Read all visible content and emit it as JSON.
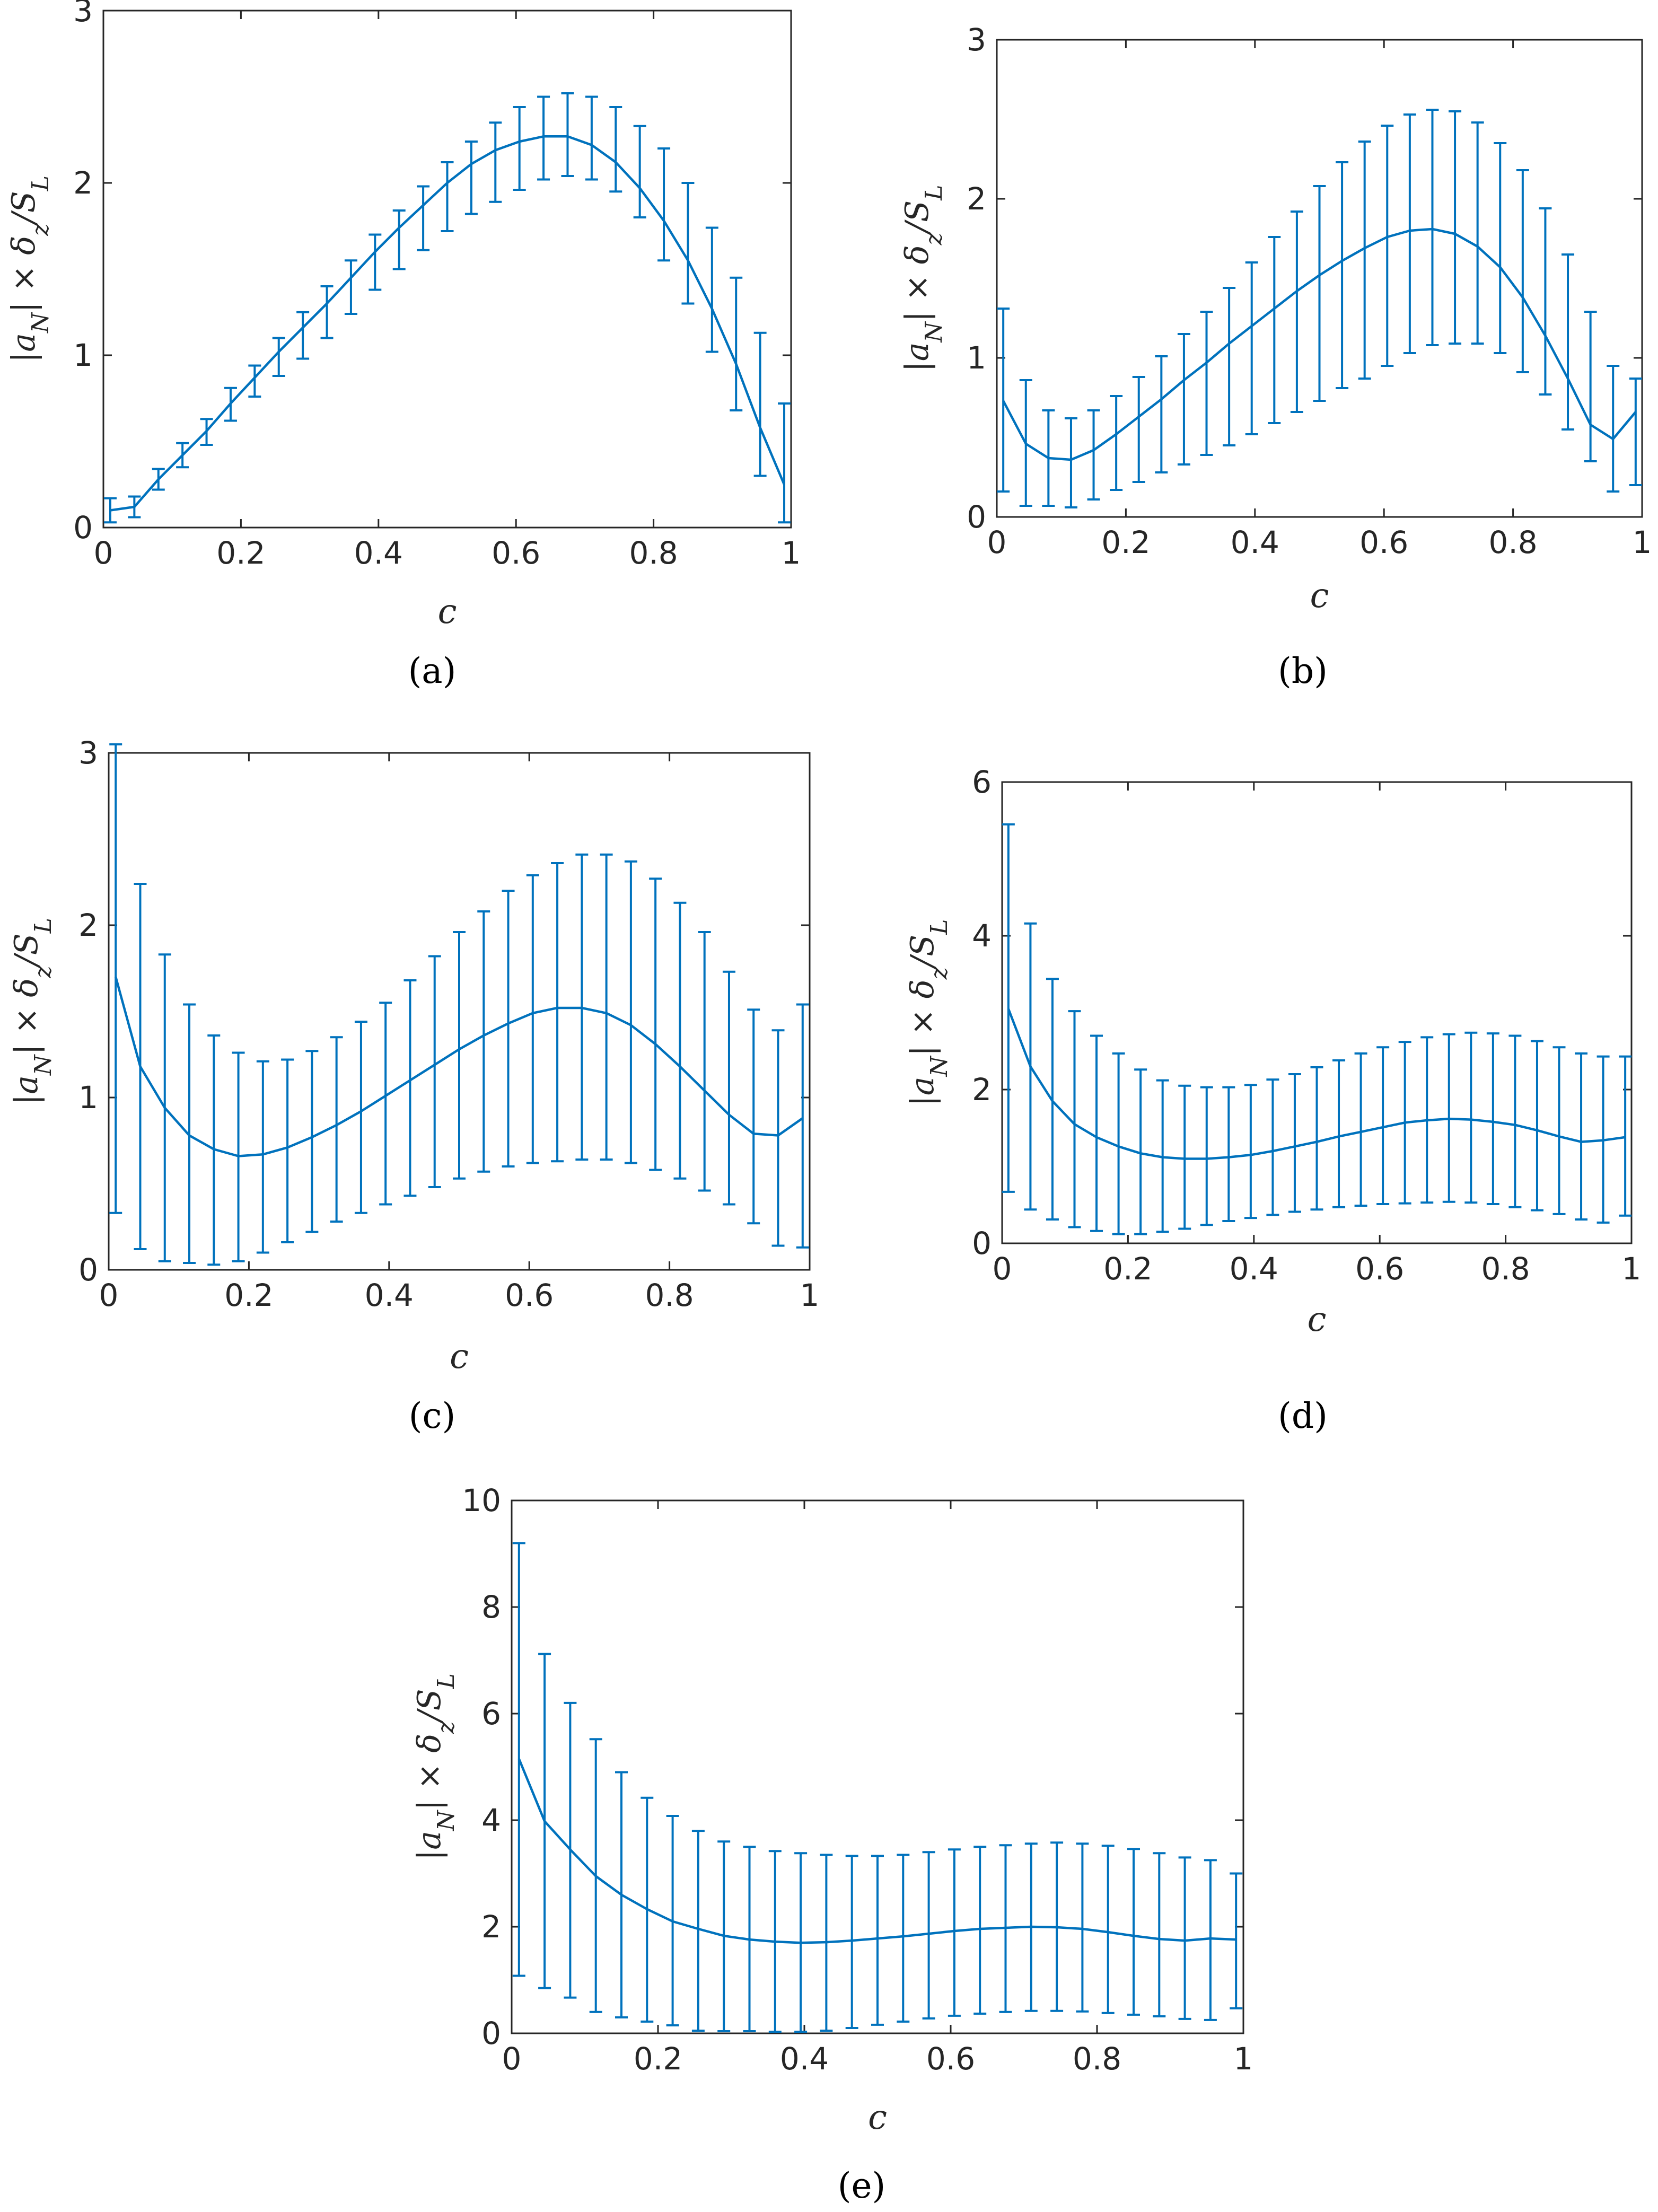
{
  "figure": {
    "caption_labels": [
      "(a)",
      "(b)",
      "(c)",
      "(d)",
      "(e)"
    ]
  },
  "colors": {
    "series": "#0072BD",
    "axis": "#262626"
  },
  "chart_data": [
    {
      "type": "line",
      "panel": "(a)",
      "xlabel": "c",
      "ylabel": "|a_N| × δ_z/S_L",
      "xlim": [
        0,
        1
      ],
      "ylim": [
        0,
        3
      ],
      "xticks": [
        "0",
        "0.2",
        "0.4",
        "0.6",
        "0.8",
        "1"
      ],
      "yticks": [
        "0",
        "1",
        "2",
        "3"
      ],
      "x": [
        0.01,
        0.045,
        0.08,
        0.115,
        0.15,
        0.185,
        0.22,
        0.255,
        0.29,
        0.325,
        0.36,
        0.395,
        0.43,
        0.465,
        0.5,
        0.535,
        0.57,
        0.605,
        0.64,
        0.675,
        0.71,
        0.745,
        0.78,
        0.815,
        0.85,
        0.885,
        0.92,
        0.955,
        0.99
      ],
      "mean": [
        0.1,
        0.12,
        0.28,
        0.42,
        0.56,
        0.72,
        0.87,
        1.02,
        1.16,
        1.3,
        1.45,
        1.6,
        1.74,
        1.87,
        2.0,
        2.11,
        2.19,
        2.24,
        2.27,
        2.27,
        2.22,
        2.12,
        1.97,
        1.78,
        1.55,
        1.27,
        0.95,
        0.58,
        0.25
      ],
      "err_low": [
        0.03,
        0.06,
        0.22,
        0.35,
        0.48,
        0.62,
        0.76,
        0.88,
        0.98,
        1.1,
        1.24,
        1.38,
        1.5,
        1.61,
        1.72,
        1.82,
        1.89,
        1.96,
        2.02,
        2.04,
        2.02,
        1.95,
        1.8,
        1.55,
        1.3,
        1.02,
        0.68,
        0.3,
        0.03
      ],
      "err_high": [
        0.17,
        0.18,
        0.34,
        0.49,
        0.63,
        0.81,
        0.94,
        1.1,
        1.25,
        1.4,
        1.55,
        1.7,
        1.84,
        1.98,
        2.12,
        2.24,
        2.35,
        2.44,
        2.5,
        2.52,
        2.5,
        2.44,
        2.33,
        2.2,
        2.0,
        1.74,
        1.45,
        1.13,
        0.72
      ]
    },
    {
      "type": "line",
      "panel": "(b)",
      "xlabel": "c",
      "ylabel": "|a_N| × δ_z/S_L",
      "xlim": [
        0,
        1
      ],
      "ylim": [
        0,
        3
      ],
      "xticks": [
        "0",
        "0.2",
        "0.4",
        "0.6",
        "0.8",
        "1"
      ],
      "yticks": [
        "0",
        "1",
        "2",
        "3"
      ],
      "x": [
        0.01,
        0.045,
        0.08,
        0.115,
        0.15,
        0.185,
        0.22,
        0.255,
        0.29,
        0.325,
        0.36,
        0.395,
        0.43,
        0.465,
        0.5,
        0.535,
        0.57,
        0.605,
        0.64,
        0.675,
        0.71,
        0.745,
        0.78,
        0.815,
        0.85,
        0.885,
        0.92,
        0.955,
        0.99
      ],
      "mean": [
        0.73,
        0.46,
        0.37,
        0.36,
        0.42,
        0.52,
        0.63,
        0.74,
        0.86,
        0.97,
        1.09,
        1.2,
        1.31,
        1.42,
        1.52,
        1.61,
        1.69,
        1.76,
        1.8,
        1.81,
        1.78,
        1.7,
        1.57,
        1.38,
        1.14,
        0.87,
        0.58,
        0.49,
        0.66
      ],
      "err_low": [
        0.16,
        0.07,
        0.07,
        0.06,
        0.11,
        0.17,
        0.22,
        0.28,
        0.33,
        0.39,
        0.45,
        0.52,
        0.59,
        0.66,
        0.73,
        0.81,
        0.87,
        0.95,
        1.03,
        1.08,
        1.09,
        1.09,
        1.03,
        0.91,
        0.77,
        0.55,
        0.35,
        0.16,
        0.2
      ],
      "err_high": [
        1.31,
        0.86,
        0.67,
        0.62,
        0.67,
        0.76,
        0.88,
        1.01,
        1.15,
        1.29,
        1.44,
        1.6,
        1.76,
        1.92,
        2.08,
        2.23,
        2.36,
        2.46,
        2.53,
        2.56,
        2.55,
        2.48,
        2.35,
        2.18,
        1.94,
        1.65,
        1.29,
        0.95,
        0.87
      ]
    },
    {
      "type": "line",
      "panel": "(c)",
      "xlabel": "c",
      "ylabel": "|a_N| × δ_z/S_L",
      "xlim": [
        0,
        1
      ],
      "ylim": [
        0,
        3
      ],
      "xticks": [
        "0",
        "0.2",
        "0.4",
        "0.6",
        "0.8",
        "1"
      ],
      "yticks": [
        "0",
        "1",
        "2",
        "3"
      ],
      "x": [
        0.01,
        0.045,
        0.08,
        0.115,
        0.15,
        0.185,
        0.22,
        0.255,
        0.29,
        0.325,
        0.36,
        0.395,
        0.43,
        0.465,
        0.5,
        0.535,
        0.57,
        0.605,
        0.64,
        0.675,
        0.71,
        0.745,
        0.78,
        0.815,
        0.85,
        0.885,
        0.92,
        0.955,
        0.99
      ],
      "mean": [
        1.7,
        1.18,
        0.94,
        0.78,
        0.7,
        0.66,
        0.67,
        0.71,
        0.77,
        0.84,
        0.92,
        1.01,
        1.1,
        1.19,
        1.28,
        1.36,
        1.43,
        1.49,
        1.52,
        1.52,
        1.49,
        1.42,
        1.31,
        1.18,
        1.04,
        0.9,
        0.79,
        0.78,
        0.88
      ],
      "err_low": [
        0.33,
        0.12,
        0.05,
        0.04,
        0.03,
        0.05,
        0.1,
        0.16,
        0.22,
        0.28,
        0.33,
        0.38,
        0.43,
        0.48,
        0.53,
        0.57,
        0.6,
        0.62,
        0.63,
        0.64,
        0.64,
        0.62,
        0.58,
        0.53,
        0.46,
        0.38,
        0.27,
        0.14,
        0.13
      ],
      "err_high": [
        3.05,
        2.24,
        1.83,
        1.54,
        1.36,
        1.26,
        1.21,
        1.22,
        1.27,
        1.35,
        1.44,
        1.55,
        1.68,
        1.82,
        1.96,
        2.08,
        2.2,
        2.29,
        2.36,
        2.41,
        2.41,
        2.37,
        2.27,
        2.13,
        1.96,
        1.73,
        1.51,
        1.39,
        1.54
      ]
    },
    {
      "type": "line",
      "panel": "(d)",
      "xlabel": "c",
      "ylabel": "|a_N| × δ_z/S_L",
      "xlim": [
        0,
        1
      ],
      "ylim": [
        0,
        6
      ],
      "xticks": [
        "0",
        "0.2",
        "0.4",
        "0.6",
        "0.8",
        "1"
      ],
      "yticks": [
        "0",
        "2",
        "4",
        "6"
      ],
      "x": [
        0.01,
        0.045,
        0.08,
        0.115,
        0.15,
        0.185,
        0.22,
        0.255,
        0.29,
        0.325,
        0.36,
        0.395,
        0.43,
        0.465,
        0.5,
        0.535,
        0.57,
        0.605,
        0.64,
        0.675,
        0.71,
        0.745,
        0.78,
        0.815,
        0.85,
        0.885,
        0.92,
        0.955,
        0.99
      ],
      "mean": [
        3.05,
        2.3,
        1.85,
        1.55,
        1.38,
        1.26,
        1.17,
        1.12,
        1.1,
        1.1,
        1.12,
        1.15,
        1.2,
        1.26,
        1.32,
        1.39,
        1.45,
        1.51,
        1.57,
        1.6,
        1.62,
        1.61,
        1.58,
        1.54,
        1.47,
        1.39,
        1.32,
        1.34,
        1.38
      ],
      "err_low": [
        0.67,
        0.44,
        0.31,
        0.21,
        0.16,
        0.12,
        0.12,
        0.15,
        0.19,
        0.24,
        0.29,
        0.33,
        0.37,
        0.41,
        0.44,
        0.47,
        0.49,
        0.51,
        0.52,
        0.53,
        0.54,
        0.53,
        0.51,
        0.47,
        0.43,
        0.38,
        0.31,
        0.27,
        0.36
      ],
      "err_high": [
        5.45,
        4.16,
        3.44,
        3.02,
        2.7,
        2.47,
        2.26,
        2.12,
        2.05,
        2.03,
        2.03,
        2.06,
        2.13,
        2.2,
        2.29,
        2.38,
        2.47,
        2.55,
        2.62,
        2.68,
        2.72,
        2.74,
        2.73,
        2.7,
        2.63,
        2.55,
        2.47,
        2.43,
        2.43
      ]
    },
    {
      "type": "line",
      "panel": "(e)",
      "xlabel": "c",
      "ylabel": "|a_N| × δ_z/S_L",
      "xlim": [
        0,
        1
      ],
      "ylim": [
        0,
        10
      ],
      "xticks": [
        "0",
        "0.2",
        "0.4",
        "0.6",
        "0.8",
        "1"
      ],
      "yticks": [
        "0",
        "2",
        "4",
        "6",
        "8",
        "10"
      ],
      "x": [
        0.01,
        0.045,
        0.08,
        0.115,
        0.15,
        0.185,
        0.22,
        0.255,
        0.29,
        0.325,
        0.36,
        0.395,
        0.43,
        0.465,
        0.5,
        0.535,
        0.57,
        0.605,
        0.64,
        0.675,
        0.71,
        0.745,
        0.78,
        0.815,
        0.85,
        0.885,
        0.92,
        0.955,
        0.99
      ],
      "mean": [
        5.15,
        3.98,
        3.45,
        2.95,
        2.6,
        2.33,
        2.1,
        1.96,
        1.83,
        1.76,
        1.72,
        1.7,
        1.71,
        1.74,
        1.78,
        1.82,
        1.87,
        1.92,
        1.96,
        1.98,
        2.0,
        1.99,
        1.96,
        1.9,
        1.83,
        1.77,
        1.74,
        1.78,
        1.76
      ],
      "err_low": [
        1.08,
        0.85,
        0.67,
        0.4,
        0.3,
        0.22,
        0.15,
        0.05,
        0.04,
        0.04,
        0.03,
        0.03,
        0.05,
        0.1,
        0.16,
        0.22,
        0.28,
        0.33,
        0.37,
        0.4,
        0.42,
        0.42,
        0.41,
        0.38,
        0.35,
        0.32,
        0.27,
        0.25,
        0.47
      ],
      "err_high": [
        9.2,
        7.12,
        6.2,
        5.52,
        4.9,
        4.42,
        4.08,
        3.8,
        3.6,
        3.5,
        3.42,
        3.38,
        3.35,
        3.33,
        3.33,
        3.35,
        3.4,
        3.45,
        3.5,
        3.53,
        3.56,
        3.58,
        3.56,
        3.52,
        3.46,
        3.38,
        3.3,
        3.25,
        3.0
      ]
    }
  ]
}
